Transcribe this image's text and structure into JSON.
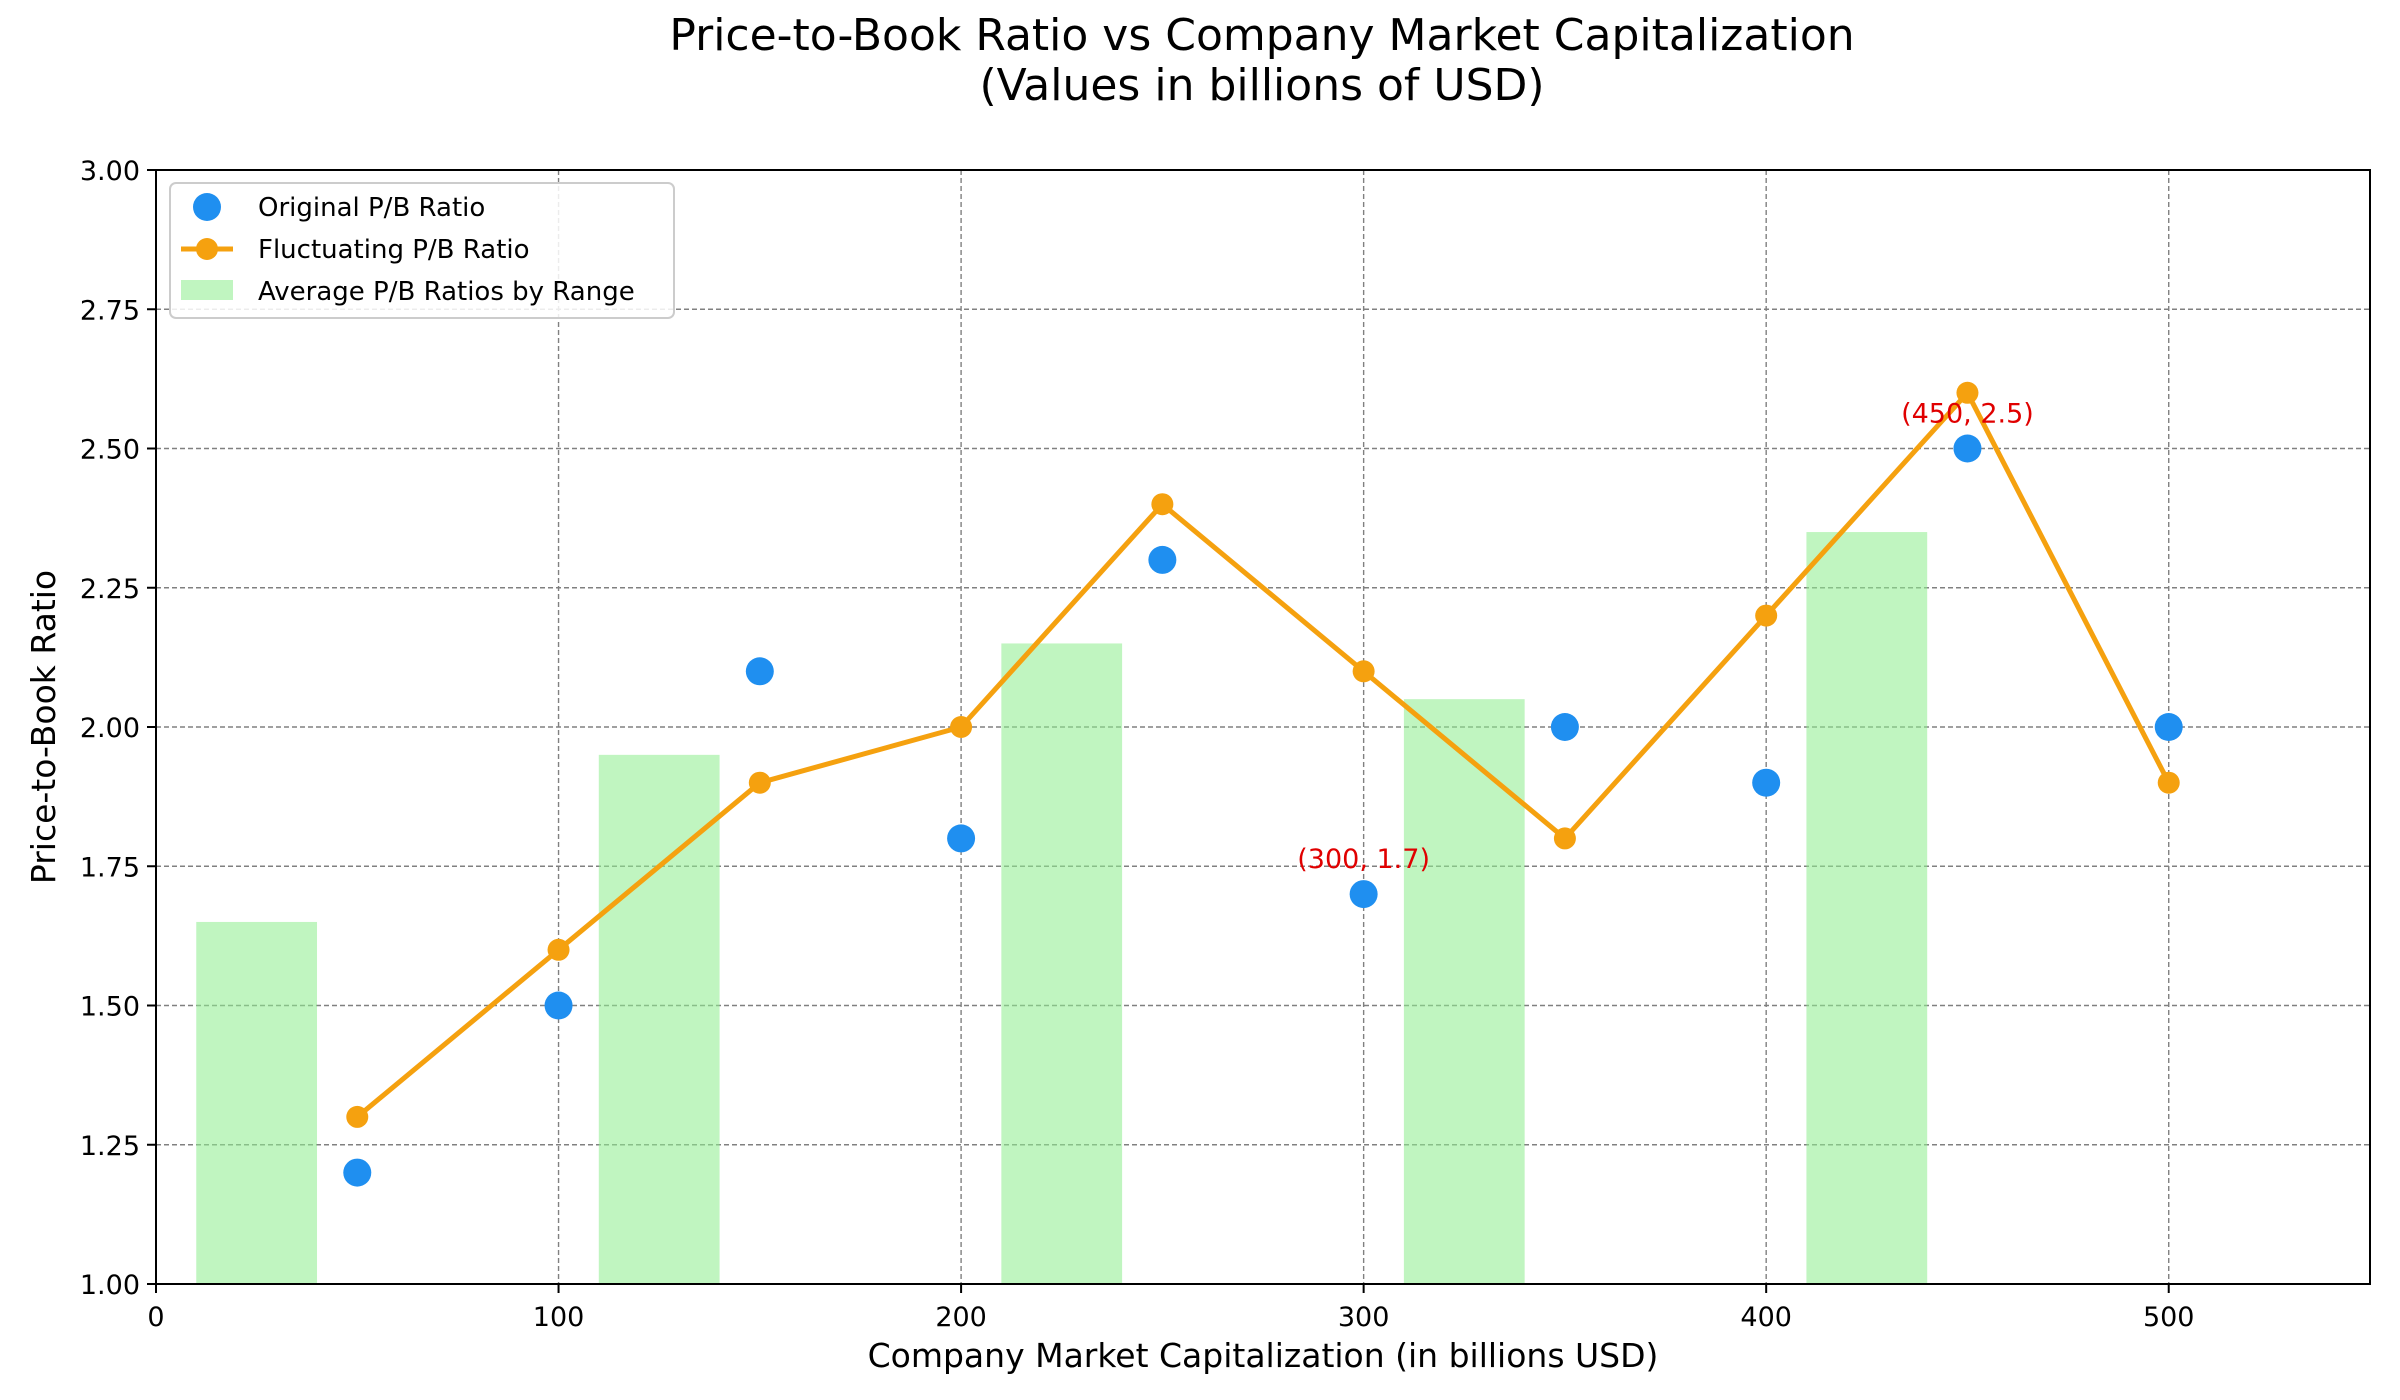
{
  "chart_data": {
    "type": "scatter",
    "title": "Price-to-Book Ratio vs Company Market Capitalization",
    "subtitle": "(Values in billions of USD)",
    "xlabel": "Company Market Capitalization (in billions USD)",
    "ylabel": "Price-to-Book Ratio",
    "xlim": [
      0,
      550
    ],
    "ylim": [
      1.0,
      3.0
    ],
    "x_ticks": [
      0,
      100,
      200,
      300,
      400,
      500
    ],
    "x_tick_labels": [
      "0",
      "100",
      "200",
      "300",
      "400",
      "500"
    ],
    "y_ticks": [
      1.0,
      1.25,
      1.5,
      1.75,
      2.0,
      2.25,
      2.5,
      2.75,
      3.0
    ],
    "y_tick_labels": [
      "1.00",
      "1.25",
      "1.50",
      "1.75",
      "2.00",
      "2.25",
      "2.50",
      "2.75",
      "3.00"
    ],
    "grid": true,
    "legend_position": "top-left",
    "series": [
      {
        "name": "Original P/B Ratio",
        "type": "scatter",
        "color": "#1f8ff0",
        "x": [
          50,
          100,
          150,
          200,
          250,
          300,
          350,
          400,
          450,
          500
        ],
        "y": [
          1.2,
          1.5,
          2.1,
          1.8,
          2.3,
          1.7,
          2.0,
          1.9,
          2.5,
          2.0
        ]
      },
      {
        "name": "Fluctuating P/B Ratio",
        "type": "line",
        "color": "#f5a10f",
        "x": [
          50,
          100,
          150,
          200,
          250,
          300,
          350,
          400,
          450,
          500
        ],
        "y": [
          1.3,
          1.6,
          1.9,
          2.0,
          2.4,
          2.1,
          1.8,
          2.2,
          2.6,
          1.9
        ]
      },
      {
        "name": "Average P/B Ratios by Range",
        "type": "bar",
        "color": "#90ee90",
        "x_start": [
          10,
          110,
          210,
          310,
          410
        ],
        "x_end": [
          40,
          140,
          240,
          340,
          440
        ],
        "y": [
          1.65,
          1.95,
          2.15,
          2.05,
          2.35
        ]
      }
    ],
    "annotations": [
      {
        "text": "(300, 1.7)",
        "x": 300,
        "y": 1.7,
        "color": "#e00000"
      },
      {
        "text": "(450, 2.5)",
        "x": 450,
        "y": 2.5,
        "color": "#e00000"
      }
    ]
  }
}
